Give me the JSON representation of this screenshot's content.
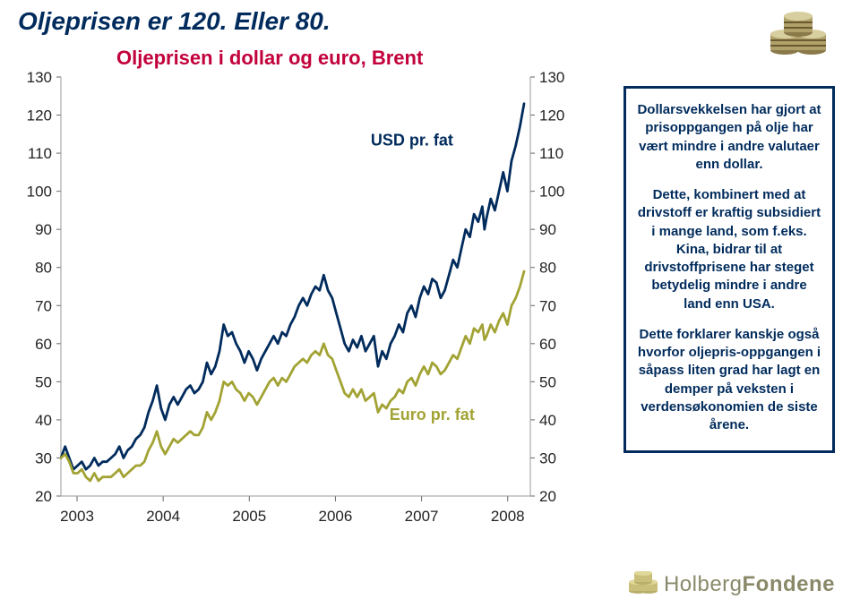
{
  "title": "Oljeprisen er 120. Eller 80.",
  "subtitle": "Oljeprisen i dollar og euro, Brent",
  "chart": {
    "type": "line",
    "background_color": "#ffffff",
    "grid_color": "#ffffff",
    "axis_color": "#333333",
    "label_fontsize": 17,
    "ylim": [
      20,
      130
    ],
    "ytick_step": 10,
    "xlabels": [
      "2003",
      "2004",
      "2005",
      "2006",
      "2007",
      "2008"
    ],
    "series": [
      {
        "name": "USD pr. fat",
        "color": "#002b5c",
        "label_x": 0.66,
        "label_y": 112,
        "data": [
          [
            0.0,
            30
          ],
          [
            0.04,
            33
          ],
          [
            0.08,
            30
          ],
          [
            0.12,
            27
          ],
          [
            0.16,
            28
          ],
          [
            0.2,
            29
          ],
          [
            0.24,
            27
          ],
          [
            0.28,
            28
          ],
          [
            0.32,
            30
          ],
          [
            0.36,
            28
          ],
          [
            0.4,
            29
          ],
          [
            0.44,
            29
          ],
          [
            0.48,
            30
          ],
          [
            0.52,
            31
          ],
          [
            0.56,
            33
          ],
          [
            0.6,
            30
          ],
          [
            0.64,
            32
          ],
          [
            0.68,
            33
          ],
          [
            0.72,
            35
          ],
          [
            0.76,
            36
          ],
          [
            0.8,
            38
          ],
          [
            0.84,
            42
          ],
          [
            0.88,
            45
          ],
          [
            0.92,
            49
          ],
          [
            0.96,
            43
          ],
          [
            1.0,
            40
          ],
          [
            1.04,
            44
          ],
          [
            1.08,
            46
          ],
          [
            1.12,
            44
          ],
          [
            1.16,
            46
          ],
          [
            1.2,
            48
          ],
          [
            1.24,
            49
          ],
          [
            1.28,
            47
          ],
          [
            1.32,
            48
          ],
          [
            1.36,
            50
          ],
          [
            1.4,
            55
          ],
          [
            1.44,
            52
          ],
          [
            1.48,
            54
          ],
          [
            1.52,
            58
          ],
          [
            1.56,
            65
          ],
          [
            1.6,
            62
          ],
          [
            1.64,
            63
          ],
          [
            1.68,
            60
          ],
          [
            1.72,
            58
          ],
          [
            1.76,
            55
          ],
          [
            1.8,
            58
          ],
          [
            1.84,
            56
          ],
          [
            1.88,
            53
          ],
          [
            1.92,
            56
          ],
          [
            1.96,
            58
          ],
          [
            2.0,
            60
          ],
          [
            2.04,
            62
          ],
          [
            2.08,
            60
          ],
          [
            2.12,
            63
          ],
          [
            2.16,
            62
          ],
          [
            2.2,
            65
          ],
          [
            2.24,
            67
          ],
          [
            2.28,
            70
          ],
          [
            2.32,
            72
          ],
          [
            2.36,
            70
          ],
          [
            2.4,
            73
          ],
          [
            2.44,
            75
          ],
          [
            2.48,
            74
          ],
          [
            2.52,
            78
          ],
          [
            2.56,
            74
          ],
          [
            2.6,
            72
          ],
          [
            2.64,
            68
          ],
          [
            2.68,
            64
          ],
          [
            2.72,
            60
          ],
          [
            2.76,
            58
          ],
          [
            2.8,
            61
          ],
          [
            2.84,
            59
          ],
          [
            2.88,
            62
          ],
          [
            2.92,
            58
          ],
          [
            2.96,
            60
          ],
          [
            3.0,
            62
          ],
          [
            3.04,
            54
          ],
          [
            3.08,
            58
          ],
          [
            3.12,
            56
          ],
          [
            3.16,
            60
          ],
          [
            3.2,
            62
          ],
          [
            3.24,
            65
          ],
          [
            3.28,
            63
          ],
          [
            3.32,
            68
          ],
          [
            3.36,
            70
          ],
          [
            3.4,
            67
          ],
          [
            3.44,
            72
          ],
          [
            3.48,
            75
          ],
          [
            3.52,
            73
          ],
          [
            3.56,
            77
          ],
          [
            3.6,
            76
          ],
          [
            3.64,
            72
          ],
          [
            3.68,
            74
          ],
          [
            3.72,
            78
          ],
          [
            3.76,
            82
          ],
          [
            3.8,
            80
          ],
          [
            3.84,
            85
          ],
          [
            3.88,
            90
          ],
          [
            3.92,
            88
          ],
          [
            3.96,
            94
          ],
          [
            4.0,
            92
          ],
          [
            4.04,
            96
          ],
          [
            4.06,
            90
          ],
          [
            4.08,
            93
          ],
          [
            4.12,
            98
          ],
          [
            4.16,
            95
          ],
          [
            4.2,
            100
          ],
          [
            4.24,
            105
          ],
          [
            4.28,
            100
          ],
          [
            4.32,
            108
          ],
          [
            4.36,
            112
          ],
          [
            4.4,
            117
          ],
          [
            4.44,
            123
          ]
        ]
      },
      {
        "name": "Euro pr. fat",
        "color": "#a2a334",
        "label_x": 0.7,
        "label_y": 40,
        "data": [
          [
            0.0,
            30
          ],
          [
            0.04,
            31
          ],
          [
            0.08,
            29
          ],
          [
            0.12,
            26
          ],
          [
            0.16,
            26
          ],
          [
            0.2,
            27
          ],
          [
            0.24,
            25
          ],
          [
            0.28,
            24
          ],
          [
            0.32,
            26
          ],
          [
            0.36,
            24
          ],
          [
            0.4,
            25
          ],
          [
            0.44,
            25
          ],
          [
            0.48,
            25
          ],
          [
            0.52,
            26
          ],
          [
            0.56,
            27
          ],
          [
            0.6,
            25
          ],
          [
            0.64,
            26
          ],
          [
            0.68,
            27
          ],
          [
            0.72,
            28
          ],
          [
            0.76,
            28
          ],
          [
            0.8,
            29
          ],
          [
            0.84,
            32
          ],
          [
            0.88,
            34
          ],
          [
            0.92,
            37
          ],
          [
            0.96,
            33
          ],
          [
            1.0,
            31
          ],
          [
            1.04,
            33
          ],
          [
            1.08,
            35
          ],
          [
            1.12,
            34
          ],
          [
            1.16,
            35
          ],
          [
            1.2,
            36
          ],
          [
            1.24,
            37
          ],
          [
            1.28,
            36
          ],
          [
            1.32,
            36
          ],
          [
            1.36,
            38
          ],
          [
            1.4,
            42
          ],
          [
            1.44,
            40
          ],
          [
            1.48,
            42
          ],
          [
            1.52,
            45
          ],
          [
            1.56,
            50
          ],
          [
            1.6,
            49
          ],
          [
            1.64,
            50
          ],
          [
            1.68,
            48
          ],
          [
            1.72,
            47
          ],
          [
            1.76,
            45
          ],
          [
            1.8,
            47
          ],
          [
            1.84,
            46
          ],
          [
            1.88,
            44
          ],
          [
            1.92,
            46
          ],
          [
            1.96,
            48
          ],
          [
            2.0,
            50
          ],
          [
            2.04,
            51
          ],
          [
            2.08,
            49
          ],
          [
            2.12,
            51
          ],
          [
            2.16,
            50
          ],
          [
            2.2,
            52
          ],
          [
            2.24,
            54
          ],
          [
            2.28,
            55
          ],
          [
            2.32,
            56
          ],
          [
            2.36,
            55
          ],
          [
            2.4,
            57
          ],
          [
            2.44,
            58
          ],
          [
            2.48,
            57
          ],
          [
            2.52,
            60
          ],
          [
            2.56,
            57
          ],
          [
            2.6,
            56
          ],
          [
            2.64,
            53
          ],
          [
            2.68,
            50
          ],
          [
            2.72,
            47
          ],
          [
            2.76,
            46
          ],
          [
            2.8,
            48
          ],
          [
            2.84,
            46
          ],
          [
            2.88,
            48
          ],
          [
            2.92,
            45
          ],
          [
            2.96,
            46
          ],
          [
            3.0,
            47
          ],
          [
            3.04,
            42
          ],
          [
            3.08,
            44
          ],
          [
            3.12,
            43
          ],
          [
            3.16,
            45
          ],
          [
            3.2,
            46
          ],
          [
            3.24,
            48
          ],
          [
            3.28,
            47
          ],
          [
            3.32,
            50
          ],
          [
            3.36,
            51
          ],
          [
            3.4,
            49
          ],
          [
            3.44,
            52
          ],
          [
            3.48,
            54
          ],
          [
            3.52,
            52
          ],
          [
            3.56,
            55
          ],
          [
            3.6,
            54
          ],
          [
            3.64,
            52
          ],
          [
            3.68,
            53
          ],
          [
            3.72,
            55
          ],
          [
            3.76,
            57
          ],
          [
            3.8,
            56
          ],
          [
            3.84,
            59
          ],
          [
            3.88,
            62
          ],
          [
            3.92,
            60
          ],
          [
            3.96,
            64
          ],
          [
            4.0,
            63
          ],
          [
            4.04,
            65
          ],
          [
            4.06,
            61
          ],
          [
            4.08,
            62
          ],
          [
            4.12,
            65
          ],
          [
            4.16,
            63
          ],
          [
            4.2,
            66
          ],
          [
            4.24,
            68
          ],
          [
            4.28,
            65
          ],
          [
            4.32,
            70
          ],
          [
            4.36,
            72
          ],
          [
            4.4,
            75
          ],
          [
            4.44,
            79
          ]
        ]
      }
    ]
  },
  "callout": {
    "p1": "Dollarsvekkelsen har gjort at prisoppgangen på olje har vært mindre i andre valutaer enn dollar.",
    "p2": "Dette, kombinert med at drivstoff er kraftig subsidiert i mange land, som f.eks. Kina, bidrar til at drivstoffprisene har steget betydelig mindre i andre land enn USA.",
    "p3": "Dette forklarer kanskje også hvorfor oljepris-oppgangen i såpass liten grad har lagt en demper på veksten i verdensøkonomien de siste årene."
  },
  "logo": {
    "part1": "Holberg",
    "part2": "Fondene"
  }
}
